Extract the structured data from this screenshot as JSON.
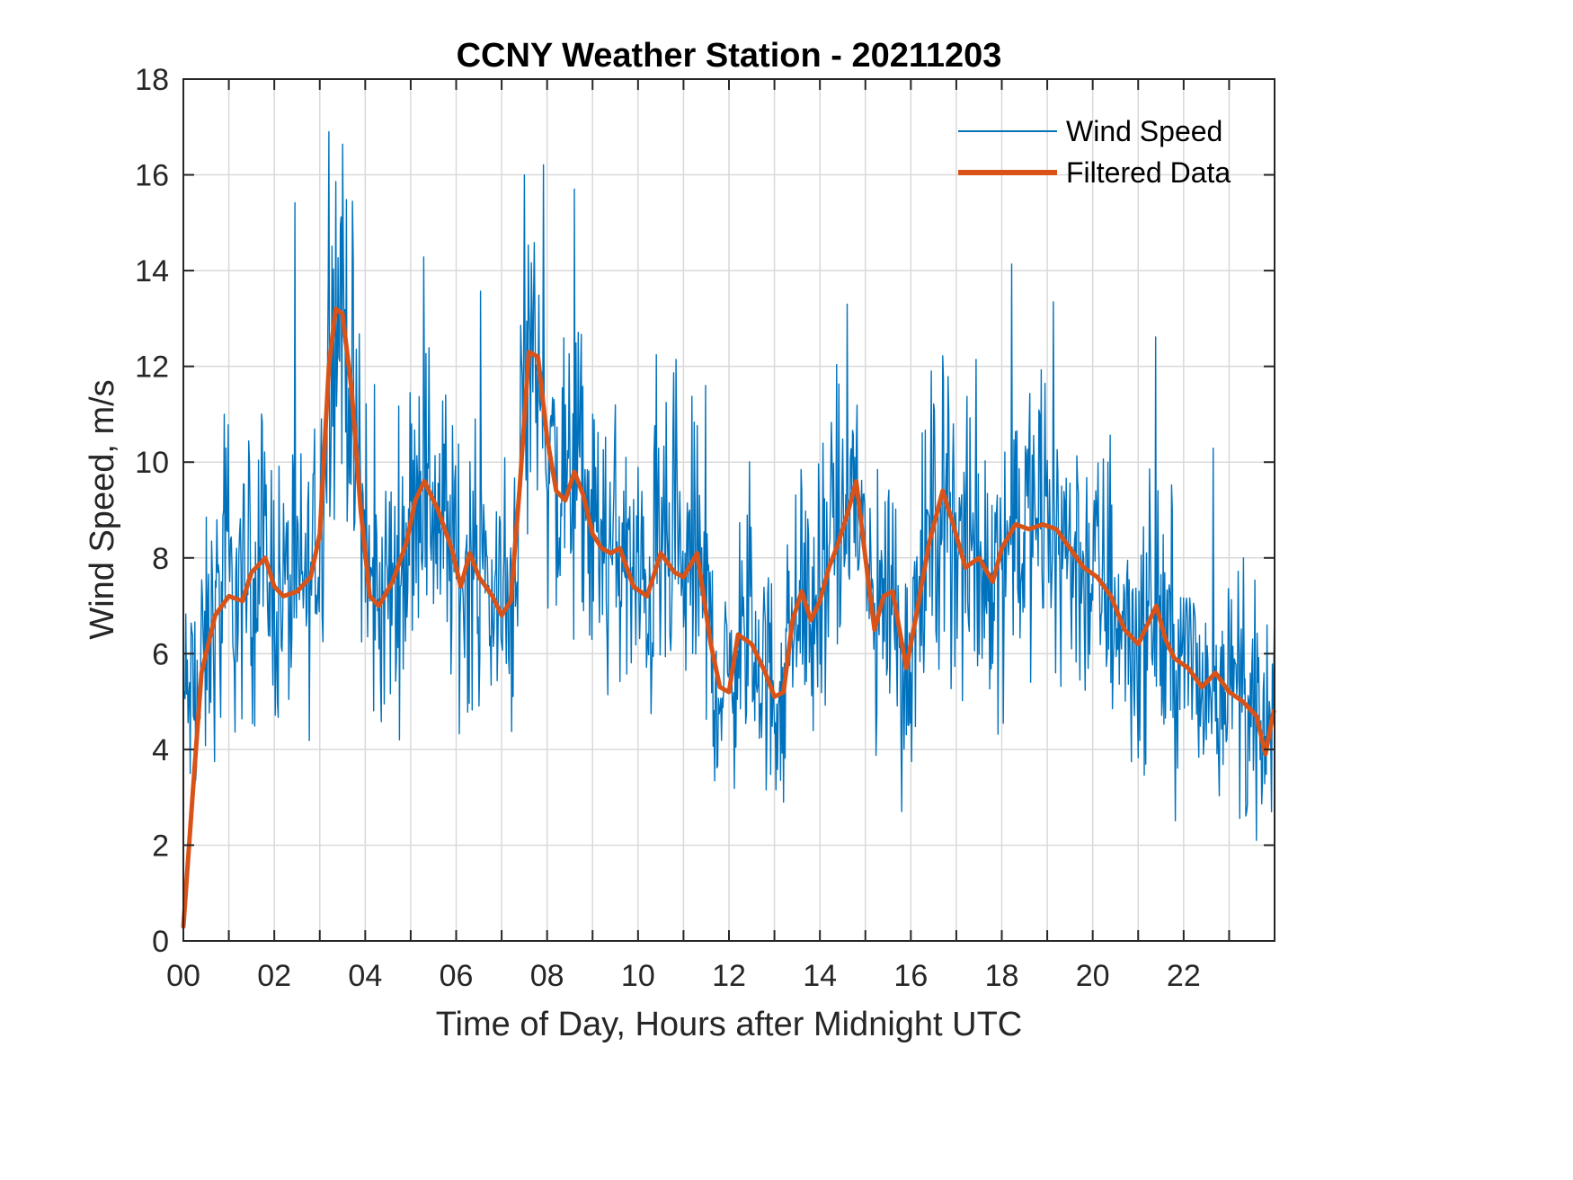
{
  "chart_data": {
    "type": "line",
    "title": "CCNY Weather Station - 20211203",
    "xlabel": "Time of Day, Hours after Midnight UTC",
    "ylabel": "Wind Speed, m/s",
    "xlim": [
      0,
      24
    ],
    "ylim": [
      0,
      18
    ],
    "grid": true,
    "legend_position": "top-right",
    "x_ticks": [
      0,
      2,
      4,
      6,
      8,
      10,
      12,
      14,
      16,
      18,
      20,
      22
    ],
    "x_tick_labels": [
      "00",
      "02",
      "04",
      "06",
      "08",
      "10",
      "12",
      "14",
      "16",
      "18",
      "20",
      "22"
    ],
    "y_ticks": [
      0,
      2,
      4,
      6,
      8,
      10,
      12,
      14,
      16,
      18
    ],
    "y_tick_labels": [
      "0",
      "2",
      "4",
      "6",
      "8",
      "10",
      "12",
      "14",
      "16",
      "18"
    ],
    "series": [
      {
        "name": "Wind Speed",
        "color": "#0072BD",
        "style": "thin noisy line (high-frequency samples fluctuating around the filtered trend, approx. range 2-17 m/s)",
        "notable_peaks": [
          {
            "x": 3.2,
            "y": 16.9
          },
          {
            "x": 7.5,
            "y": 16.0
          },
          {
            "x": 8.6,
            "y": 15.7
          },
          {
            "x": 14.6,
            "y": 13.3
          },
          {
            "x": 0.9,
            "y": 11.0
          }
        ],
        "notable_minima": [
          {
            "x": 0.15,
            "y": 3.5
          },
          {
            "x": 13.2,
            "y": 2.9
          },
          {
            "x": 15.8,
            "y": 2.7
          },
          {
            "x": 23.6,
            "y": 2.1
          }
        ]
      },
      {
        "name": "Filtered Data",
        "color": "#D95319",
        "x": [
          0.0,
          0.2,
          0.4,
          0.7,
          1.0,
          1.3,
          1.5,
          1.8,
          2.0,
          2.2,
          2.5,
          2.8,
          3.0,
          3.2,
          3.35,
          3.5,
          3.7,
          3.9,
          4.1,
          4.3,
          4.6,
          4.9,
          5.1,
          5.3,
          5.6,
          5.9,
          6.1,
          6.3,
          6.5,
          6.8,
          7.0,
          7.2,
          7.4,
          7.6,
          7.8,
          8.0,
          8.2,
          8.4,
          8.6,
          8.8,
          9.0,
          9.2,
          9.4,
          9.6,
          9.9,
          10.2,
          10.5,
          10.8,
          11.0,
          11.3,
          11.6,
          11.8,
          12.0,
          12.2,
          12.5,
          12.8,
          13.0,
          13.2,
          13.4,
          13.6,
          13.8,
          14.0,
          14.2,
          14.4,
          14.6,
          14.8,
          15.0,
          15.2,
          15.4,
          15.6,
          15.9,
          16.1,
          16.4,
          16.7,
          16.9,
          17.2,
          17.5,
          17.8,
          18.0,
          18.3,
          18.6,
          18.9,
          19.2,
          19.5,
          19.8,
          20.1,
          20.4,
          20.7,
          21.0,
          21.2,
          21.4,
          21.6,
          21.8,
          22.1,
          22.4,
          22.7,
          23.0,
          23.3,
          23.6,
          23.8,
          23.98
        ],
        "y": [
          0.3,
          3.0,
          5.6,
          6.8,
          7.2,
          7.1,
          7.7,
          8.0,
          7.4,
          7.2,
          7.3,
          7.6,
          8.5,
          12.0,
          13.2,
          13.1,
          11.5,
          9.0,
          7.2,
          7.0,
          7.5,
          8.3,
          9.2,
          9.6,
          9.0,
          8.2,
          7.4,
          8.1,
          7.6,
          7.2,
          6.8,
          7.1,
          9.5,
          12.3,
          12.2,
          10.5,
          9.4,
          9.2,
          9.8,
          9.3,
          8.5,
          8.2,
          8.1,
          8.2,
          7.4,
          7.2,
          8.1,
          7.7,
          7.6,
          8.1,
          6.2,
          5.3,
          5.2,
          6.4,
          6.2,
          5.6,
          5.1,
          5.2,
          6.7,
          7.3,
          6.7,
          7.1,
          7.8,
          8.3,
          8.9,
          9.6,
          8.0,
          6.5,
          7.2,
          7.3,
          5.7,
          6.7,
          8.3,
          9.4,
          8.8,
          7.8,
          8.0,
          7.5,
          8.2,
          8.7,
          8.6,
          8.7,
          8.6,
          8.2,
          7.8,
          7.6,
          7.2,
          6.5,
          6.2,
          6.6,
          7.0,
          6.3,
          5.9,
          5.7,
          5.3,
          5.6,
          5.2,
          5.0,
          4.7,
          3.9,
          4.8
        ]
      }
    ]
  }
}
